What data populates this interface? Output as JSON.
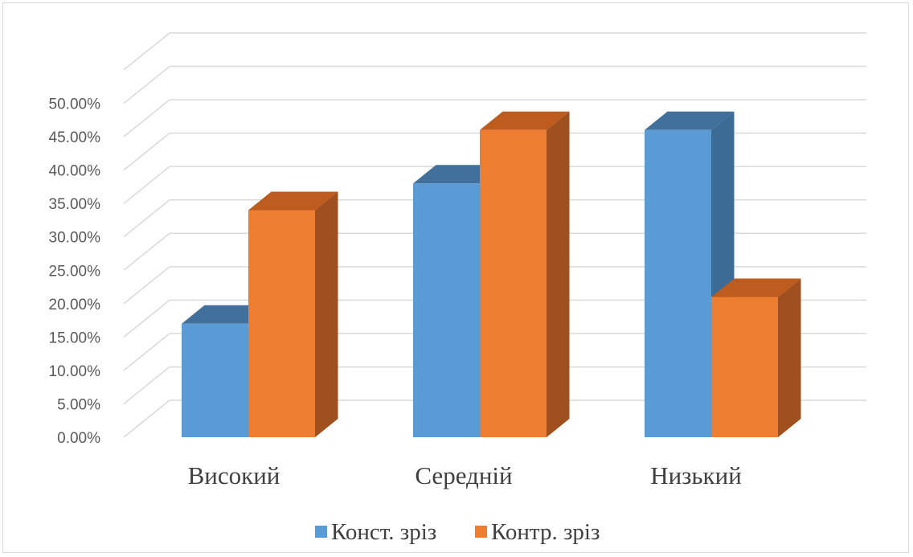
{
  "chart_data": {
    "type": "bar",
    "categories": [
      "Високий",
      "Середній",
      "Низький"
    ],
    "series": [
      {
        "name": "Конст. зріз",
        "values": [
          0.17,
          0.38,
          0.46
        ],
        "color": "#5B9BD5",
        "side_color": "#3C6C96",
        "top_color": "#41709C"
      },
      {
        "name": "Контр. зріз",
        "values": [
          0.34,
          0.46,
          0.21
        ],
        "color": "#ED7D31",
        "side_color": "#A04F1E",
        "top_color": "#BE5B1E"
      }
    ],
    "yticks": [
      "0.00%",
      "5.00%",
      "10.00%",
      "15.00%",
      "20.00%",
      "25.00%",
      "30.00%",
      "35.00%",
      "40.00%",
      "45.00%",
      "50.00%"
    ],
    "ylim": [
      0,
      0.55
    ],
    "three_d": true,
    "grid": true,
    "legend_position": "bottom"
  }
}
